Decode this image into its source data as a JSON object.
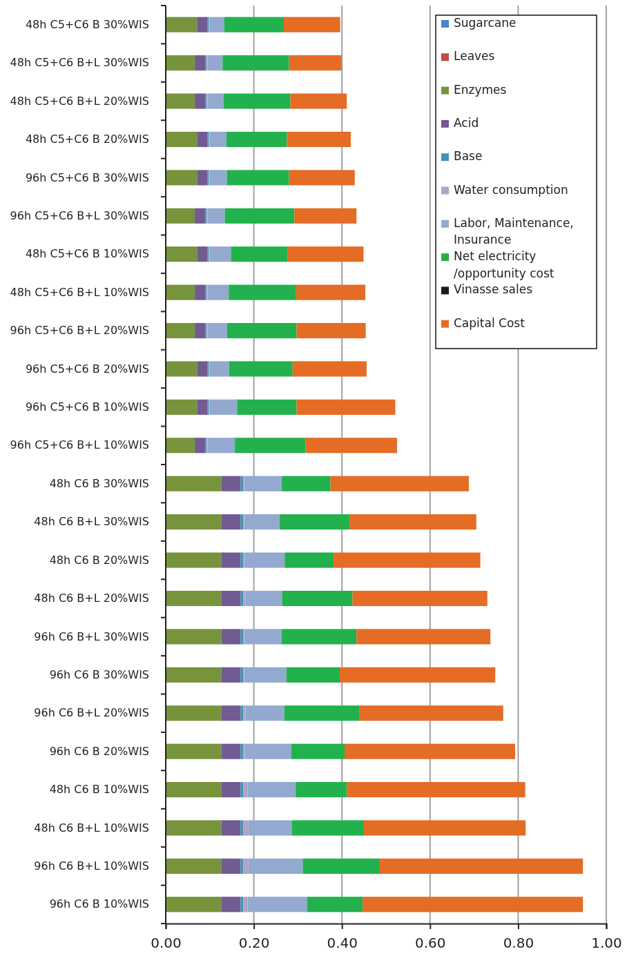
{
  "chart_data": {
    "type": "bar",
    "orientation": "horizontal",
    "stacked": true,
    "grid": "x",
    "legend": "top right",
    "categories": [
      "48h C5+C6 B 30%WIS",
      "48h C5+C6 B+L 30%WIS",
      "48h C5+C6 B+L 20%WIS",
      "48h C5+C6 B 20%WIS",
      "96h C5+C6 B 30%WIS",
      "96h C5+C6 B+L 30%WIS",
      "48h C5+C6 B 10%WIS",
      "48h C5+C6 B+L 10%WIS",
      "96h C5+C6 B+L 20%WIS",
      "96h C5+C6 B 20%WIS",
      "96h C5+C6 B 10%WIS",
      "96h C5+C6 B+L 10%WIS",
      "48h C6 B 30%WIS",
      "48h C6 B+L 30%WIS",
      "48h C6 B 20%WIS",
      "48h C6 B+L 20%WIS",
      "96h C6 B+L 30%WIS",
      "96h C6 B 30%WIS",
      "96h C6 B+L 20%WIS",
      "96h C6 B 20%WIS",
      "48h C6 B 10%WIS",
      "48h C6 B+L 10%WIS",
      "96h C6 B+L 10%WIS",
      "96h C6 B 10%WIS"
    ],
    "xlim": [
      0,
      1
    ],
    "xticks": [
      {
        "value": 0,
        "label": "0.00"
      },
      {
        "value": 0.2,
        "label": "0.20"
      },
      {
        "value": 0.4,
        "label": "0.40"
      },
      {
        "value": 0.6,
        "label": "0.60"
      },
      {
        "value": 0.8,
        "label": "0.80"
      },
      {
        "value": 1,
        "label": "1.00"
      }
    ],
    "series": [
      {
        "name": "Sugarcane",
        "color": "#4a86c8",
        "values": [
          0,
          0,
          0,
          0,
          0,
          0,
          0,
          0,
          0,
          0,
          0,
          0,
          0,
          0,
          0,
          0,
          0,
          0,
          0,
          0,
          0,
          0,
          0,
          0
        ]
      },
      {
        "name": "Leaves",
        "color": "#be4b48",
        "values": [
          0,
          0,
          0,
          0,
          0,
          0,
          0,
          0,
          0,
          0,
          0,
          0,
          0,
          0,
          0,
          0,
          0,
          0,
          0,
          0,
          0,
          0,
          0,
          0
        ]
      },
      {
        "name": "Enzymes",
        "color": "#77933c",
        "values": [
          0.071,
          0.066,
          0.066,
          0.071,
          0.071,
          0.066,
          0.071,
          0.066,
          0.066,
          0.071,
          0.071,
          0.066,
          0.126,
          0.126,
          0.126,
          0.126,
          0.126,
          0.126,
          0.126,
          0.126,
          0.126,
          0.126,
          0.126,
          0.126
        ]
      },
      {
        "name": "Acid",
        "color": "#725a93",
        "values": [
          0.024,
          0.024,
          0.024,
          0.024,
          0.024,
          0.024,
          0.024,
          0.024,
          0.024,
          0.024,
          0.024,
          0.024,
          0.044,
          0.044,
          0.044,
          0.044,
          0.044,
          0.044,
          0.044,
          0.044,
          0.044,
          0.044,
          0.044,
          0.044
        ]
      },
      {
        "name": "Base",
        "color": "#3d96b5",
        "values": [
          0.003,
          0.003,
          0.003,
          0.003,
          0.003,
          0.003,
          0.003,
          0.003,
          0.003,
          0.003,
          0.003,
          0.003,
          0.006,
          0.006,
          0.006,
          0.006,
          0.006,
          0.006,
          0.006,
          0.006,
          0.006,
          0.006,
          0.006,
          0.006
        ]
      },
      {
        "name": "Water consumption",
        "color": "#b3a2c7",
        "values": [
          0.002,
          0.002,
          0.002,
          0.002,
          0.002,
          0.002,
          0.002,
          0.002,
          0.002,
          0.002,
          0.002,
          0.002,
          0.003,
          0.003,
          0.003,
          0.005,
          0.003,
          0.003,
          0.005,
          0.003,
          0.01,
          0.011,
          0.011,
          0.01
        ]
      },
      {
        "name": "Labor, Maintenance, Insurance",
        "color": "#93a9d0",
        "values": [
          0.033,
          0.034,
          0.036,
          0.038,
          0.039,
          0.039,
          0.048,
          0.048,
          0.044,
          0.044,
          0.062,
          0.062,
          0.084,
          0.079,
          0.091,
          0.083,
          0.084,
          0.095,
          0.088,
          0.106,
          0.109,
          0.099,
          0.124,
          0.135
        ]
      },
      {
        "name": "Net electricity /opportunity cost",
        "color": "#22b14c",
        "values": [
          0.135,
          0.151,
          0.152,
          0.137,
          0.141,
          0.158,
          0.129,
          0.153,
          0.158,
          0.144,
          0.135,
          0.16,
          0.111,
          0.159,
          0.111,
          0.16,
          0.17,
          0.121,
          0.17,
          0.121,
          0.116,
          0.164,
          0.175,
          0.126
        ]
      },
      {
        "name": "Vinasse sales",
        "color": "#1a1a1a",
        "values": [
          0,
          0,
          0,
          0,
          0,
          0,
          0,
          0,
          0,
          0,
          0,
          0,
          0,
          0,
          0,
          0,
          0,
          0,
          0,
          0,
          0,
          0,
          0,
          0
        ]
      },
      {
        "name": "Capital Cost",
        "color": "#e46c24",
        "values": [
          0.128,
          0.119,
          0.128,
          0.145,
          0.149,
          0.141,
          0.172,
          0.157,
          0.157,
          0.168,
          0.224,
          0.208,
          0.314,
          0.288,
          0.333,
          0.306,
          0.304,
          0.353,
          0.327,
          0.387,
          0.405,
          0.367,
          0.461,
          0.5
        ]
      }
    ]
  }
}
